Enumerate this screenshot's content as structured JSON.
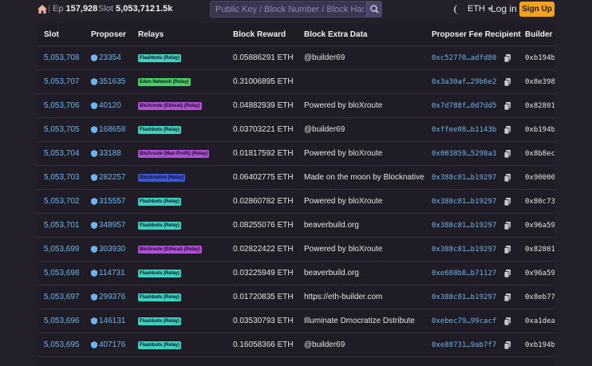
{
  "topbar": {
    "epoch_label": "Ep",
    "epoch_value": "157,928",
    "slot_label": "Slot",
    "slot_value": "5,053,712",
    "gas": "1.5k",
    "search_placeholder": "Public Key / Block Number / Block Hash / Block Root",
    "network": "ETH",
    "login": "Log in",
    "signup": "Sign Up"
  },
  "table": {
    "headers": [
      "Slot",
      "Proposer",
      "Relays",
      "Block Reward",
      "Block Extra Data",
      "Proposer Fee Recipient",
      "Builder"
    ],
    "rows": [
      {
        "slot": "5,053,708",
        "proposer": "23354",
        "relay": "Flashbots (Relay)",
        "relay_color": "#3fd1c0",
        "reward": "0.05886291 ETH",
        "extra": "@builder69",
        "fee": "0xc52770…adfd80",
        "builder": "0xb194b"
      },
      {
        "slot": "5,053,707",
        "proposer": "351635",
        "relay": "Eden Network (Relay)",
        "relay_color": "#45d45e",
        "reward": "0.31006895 ETH",
        "extra": "",
        "fee": "0x3a30af…29b6e2",
        "builder": "0x8e398"
      },
      {
        "slot": "5,053,706",
        "proposer": "40120",
        "relay": "BloXroute (Ethical) (Relay)",
        "relay_color": "#b04fd4",
        "reward": "0.04882939 ETH",
        "extra": "Powered by bloXroute",
        "fee": "0x7d788f…0d7dd5",
        "builder": "0x82801"
      },
      {
        "slot": "5,053,705",
        "proposer": "168658",
        "relay": "Flashbots (Relay)",
        "relay_color": "#3fd1c0",
        "reward": "0.03703221 ETH",
        "extra": "@builder69",
        "fee": "0xffee08…b1143b",
        "builder": "0xb194b"
      },
      {
        "slot": "5,053,704",
        "proposer": "33188",
        "relay": "BloXroute (Max-Profit) (Relay)",
        "relay_color": "#b04fd4",
        "reward": "0.01817592 ETH",
        "extra": "Powered by bloXroute",
        "fee": "0x003859…5298a3",
        "builder": "0x8b8ec"
      },
      {
        "slot": "5,053,703",
        "proposer": "282257",
        "relay": "Blocknative (Relay)",
        "relay_color": "#3b55d9",
        "reward": "0.06402775 ETH",
        "extra": "Made on the moon by Blocknative",
        "fee": "0x388c81…b19297",
        "builder": "0x90000"
      },
      {
        "slot": "5,053,702",
        "proposer": "315557",
        "relay": "Flashbots (Relay)",
        "relay_color": "#3fd1c0",
        "reward": "0.02860782 ETH",
        "extra": "Powered by bloXroute",
        "fee": "0x388c81…b19297",
        "builder": "0x80c73"
      },
      {
        "slot": "5,053,701",
        "proposer": "348957",
        "relay": "Flashbots (Relay)",
        "relay_color": "#3fd1c0",
        "reward": "0.08255076 ETH",
        "extra": "beaverbuild.org",
        "fee": "0x388c81…b19297",
        "builder": "0x96a59"
      },
      {
        "slot": "5,053,699",
        "proposer": "303930",
        "relay": "BloXroute (Ethical) (Relay)",
        "relay_color": "#b04fd4",
        "reward": "0.02822422 ETH",
        "extra": "Powered by bloXroute",
        "fee": "0x388c81…b19297",
        "builder": "0x82801"
      },
      {
        "slot": "5,053,698",
        "proposer": "114731",
        "relay": "Flashbots (Relay)",
        "relay_color": "#3fd1c0",
        "reward": "0.03225949 ETH",
        "extra": "beaverbuild.org",
        "fee": "0xe688b8…b71127",
        "builder": "0x96a59"
      },
      {
        "slot": "5,053,697",
        "proposer": "299376",
        "relay": "Flashbots (Relay)",
        "relay_color": "#3fd1c0",
        "reward": "0.01720835 ETH",
        "extra": "https://eth-builder.com",
        "fee": "0x388c81…b19297",
        "builder": "0x8eb77"
      },
      {
        "slot": "5,053,696",
        "proposer": "146131",
        "relay": "Flashbots (Relay)",
        "relay_color": "#3fd1c0",
        "reward": "0.03530793 ETH",
        "extra": "Illuminate Dmocratize Dstribute",
        "fee": "0xebec79…99cacf",
        "builder": "0xa1dea"
      },
      {
        "slot": "5,053,695",
        "proposer": "407176",
        "relay": "Flashbots (Relay)",
        "relay_color": "#3fd1c0",
        "reward": "0.16058366 ETH",
        "extra": "@builder69",
        "fee": "0xe88731…9ab7f7",
        "builder": "0xb194b"
      }
    ]
  },
  "colors": {
    "link": "#6fb4ec",
    "accent": "#f5a21b",
    "background": "#23202a"
  }
}
